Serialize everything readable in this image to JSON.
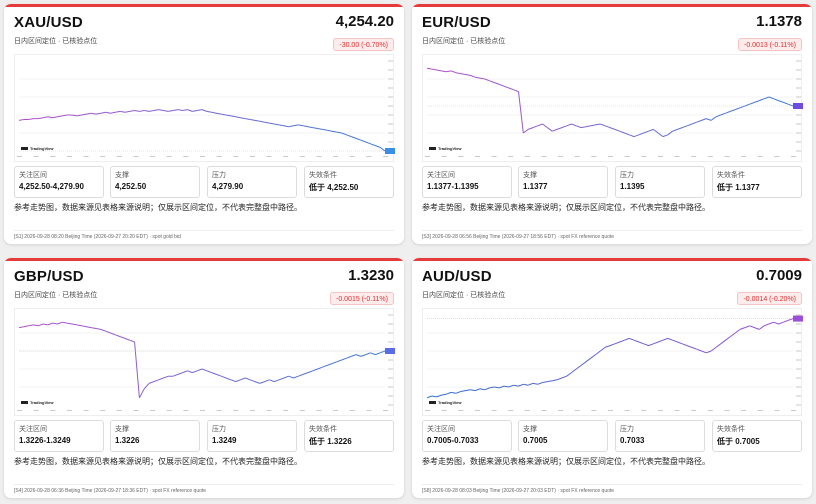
{
  "cards": [
    {
      "pair": "XAU/USD",
      "price": "4,254.20",
      "subtitle": "日内区间定位 · 已核验点位",
      "change": "-30.00 (-0.70%)",
      "series": [
        66,
        65,
        65,
        64,
        64,
        63,
        62,
        63,
        62,
        61,
        60,
        60,
        61,
        60,
        59,
        58,
        59,
        58,
        57,
        58,
        57,
        56,
        57,
        56,
        55,
        56,
        55,
        56,
        55,
        54,
        55,
        56,
        55,
        54,
        55,
        54,
        56,
        55,
        54,
        56,
        57,
        58,
        59,
        60,
        61,
        62,
        63,
        64,
        65,
        66,
        67,
        68,
        69,
        70,
        71,
        72,
        73,
        72,
        71,
        72,
        73,
        74,
        75,
        76,
        77,
        78,
        79,
        80,
        82,
        84,
        86,
        88,
        90,
        92,
        94,
        96,
        100
      ],
      "color_start": "#b24fc9",
      "color_end": "#3a7bd5",
      "tag_color": "#3a8ee6",
      "boxes": [
        {
          "label": "关注区间",
          "value": "4,252.50-4,279.90"
        },
        {
          "label": "支撑",
          "value": "4,252.50"
        },
        {
          "label": "压力",
          "value": "4,279.90"
        },
        {
          "label": "失效条件",
          "value": "低于 4,252.50"
        }
      ],
      "note": "参考走势图，数据来源见表格来源说明；仅展示区间定位，不代表完整盘中路径。",
      "footer": "[S1] 2026-09-28 08:20 Beijing Time (2026-09-27 20:20 EDT) · spot gold bid"
    },
    {
      "pair": "EUR/USD",
      "price": "1.1378",
      "subtitle": "日内区间定位 · 已核验点位",
      "change": "-0.0013 (-0.11%)",
      "series": [
        8,
        9,
        10,
        11,
        12,
        11,
        13,
        14,
        15,
        16,
        18,
        19,
        20,
        22,
        24,
        26,
        28,
        30,
        32,
        34,
        80,
        76,
        74,
        72,
        70,
        74,
        78,
        76,
        74,
        72,
        70,
        72,
        74,
        73,
        72,
        71,
        70,
        72,
        74,
        76,
        78,
        80,
        82,
        84,
        82,
        80,
        78,
        76,
        80,
        84,
        82,
        78,
        76,
        74,
        72,
        70,
        68,
        66,
        64,
        66,
        62,
        60,
        58,
        56,
        54,
        52,
        50,
        48,
        46,
        44,
        42,
        40,
        42,
        44,
        46,
        48,
        50
      ],
      "color_start": "#b24fc9",
      "color_end": "#3a7bd5",
      "tag_color": "#6d4ee0",
      "boxes": [
        {
          "label": "关注区间",
          "value": "1.1377-1.1395"
        },
        {
          "label": "支撑",
          "value": "1.1377"
        },
        {
          "label": "压力",
          "value": "1.1395"
        },
        {
          "label": "失效条件",
          "value": "低于 1.1377"
        }
      ],
      "note": "参考走势图，数据来源见表格来源说明；仅展示区间定位，不代表完整盘中路径。",
      "footer": "[S3] 2026-09-28 06:56 Beijing Time (2026-09-27 18:56 EDT) · spot FX reference quote"
    },
    {
      "pair": "GBP/USD",
      "price": "1.3230",
      "subtitle": "日内区间定位 · 已核验点位",
      "change": "-0.0015 (-0.11%)",
      "series": [
        14,
        13,
        12,
        11,
        12,
        10,
        11,
        9,
        10,
        8,
        9,
        10,
        11,
        12,
        13,
        14,
        15,
        16,
        18,
        20,
        22,
        24,
        26,
        28,
        30,
        92,
        82,
        76,
        74,
        72,
        70,
        68,
        68,
        66,
        64,
        62,
        64,
        62,
        60,
        62,
        64,
        66,
        68,
        70,
        72,
        74,
        72,
        70,
        72,
        74,
        76,
        74,
        72,
        74,
        72,
        70,
        68,
        70,
        68,
        66,
        64,
        62,
        60,
        58,
        56,
        54,
        52,
        50,
        48,
        46,
        44,
        46,
        44,
        42,
        44,
        42,
        40
      ],
      "color_start": "#b24fc9",
      "color_end": "#3a7bd5",
      "tag_color": "#5a6be3",
      "boxes": [
        {
          "label": "关注区间",
          "value": "1.3226-1.3249"
        },
        {
          "label": "支撑",
          "value": "1.3226"
        },
        {
          "label": "压力",
          "value": "1.3249"
        },
        {
          "label": "失效条件",
          "value": "低于 1.3226"
        }
      ],
      "note": "参考走势图，数据来源见表格来源说明；仅展示区间定位，不代表完整盘中路径。",
      "footer": "[S4] 2026-09-28 06:36 Beijing Time (2026-09-27 18:36 EDT) · spot FX reference quote"
    },
    {
      "pair": "AUD/USD",
      "price": "0.7009",
      "subtitle": "日内区间定位 · 已核验点位",
      "change": "-0.0014 (-0.20%)",
      "series": [
        92,
        90,
        91,
        89,
        88,
        86,
        87,
        85,
        84,
        83,
        84,
        82,
        83,
        81,
        80,
        81,
        79,
        80,
        78,
        79,
        77,
        78,
        76,
        77,
        75,
        74,
        73,
        72,
        70,
        68,
        64,
        60,
        56,
        52,
        48,
        44,
        40,
        36,
        34,
        32,
        30,
        28,
        26,
        28,
        30,
        32,
        34,
        32,
        30,
        28,
        26,
        28,
        30,
        32,
        34,
        36,
        38,
        40,
        42,
        40,
        36,
        32,
        28,
        24,
        20,
        16,
        14,
        12,
        14,
        16,
        12,
        10,
        8,
        10,
        8,
        6,
        4
      ],
      "color_start": "#2f6fd1",
      "color_end": "#9b4fd6",
      "tag_color": "#9b4fd6",
      "boxes": [
        {
          "label": "关注区间",
          "value": "0.7005-0.7033"
        },
        {
          "label": "支撑",
          "value": "0.7005"
        },
        {
          "label": "压力",
          "value": "0.7033"
        },
        {
          "label": "失效条件",
          "value": "低于 0.7005"
        }
      ],
      "note": "参考走势图，数据来源见表格来源说明；仅展示区间定位，不代表完整盘中路径。",
      "footer": "[S8] 2026-09-28 08:03 Beijing Time (2026-09-27 20:03 EDT) · spot FX reference quote"
    }
  ],
  "brand": "TradingView"
}
